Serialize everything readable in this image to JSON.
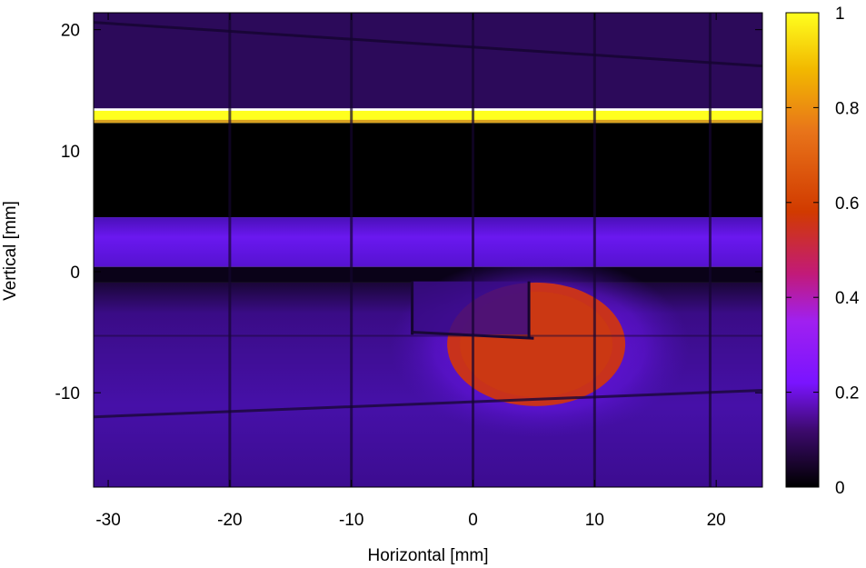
{
  "chart_data": {
    "type": "heatmap",
    "title": "",
    "xlabel": "Horizontal [mm]",
    "ylabel": "Vertical [mm]",
    "xlim": [
      -31.2,
      23.8
    ],
    "ylim": [
      -17.8,
      21.4
    ],
    "x_ticks": [
      "-30",
      "-20",
      "-10",
      "0",
      "10",
      "20"
    ],
    "y_ticks": [
      "20",
      "10",
      "0",
      "-10"
    ],
    "colorbar": {
      "range": [
        0,
        1
      ],
      "ticks": [
        "1",
        "0.8",
        "0.6",
        "0.4",
        "0.2",
        "0"
      ],
      "palette": [
        "#000000",
        "#3d0a6e",
        "#7a14ff",
        "#a020f0",
        "#c21a78",
        "#d13a00",
        "#e8741a",
        "#f2b800",
        "#ffff1e"
      ]
    },
    "features": [
      {
        "name": "bright horizontal line",
        "y": 12.8,
        "intensity": 1.0
      },
      {
        "name": "dark band",
        "y_range": [
          4.5,
          12.3
        ],
        "intensity": 0.0
      },
      {
        "name": "upper purple region",
        "y_range": [
          13.5,
          21.4
        ],
        "intensity": 0.1
      },
      {
        "name": "horizontal band",
        "y_range": [
          0.5,
          4.5
        ],
        "intensity": 0.25
      },
      {
        "name": "lower purple region",
        "y_range": [
          -17.8,
          -0.8
        ],
        "intensity": 0.15
      },
      {
        "name": "central beam spot",
        "x_range": [
          -2,
          13
        ],
        "y_range": [
          -11,
          -1
        ],
        "intensity": 0.5
      }
    ]
  }
}
